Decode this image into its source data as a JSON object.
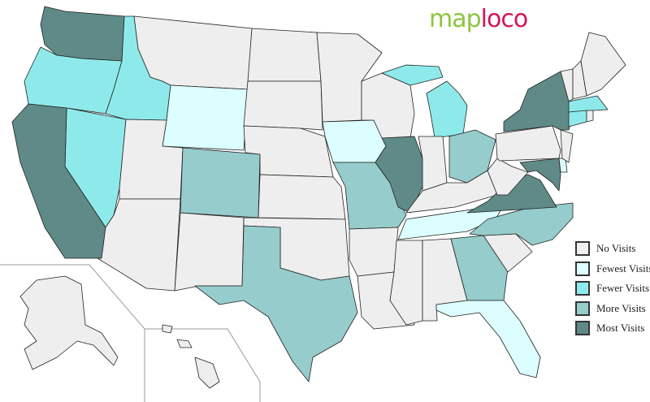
{
  "logo": {
    "part1": "map",
    "part2": "loco"
  },
  "legend": [
    {
      "key": "none",
      "label": "No Visits",
      "color": "#eeeeee"
    },
    {
      "key": "fewest",
      "label": "Fewest Visits",
      "color": "#dcfefe"
    },
    {
      "key": "fewer",
      "label": "Fewer Visits",
      "color": "#8eeaea"
    },
    {
      "key": "more",
      "label": "More Visits",
      "color": "#96cccc"
    },
    {
      "key": "most",
      "label": "Most Visits",
      "color": "#5f8a87"
    }
  ],
  "states": {
    "WA": "most",
    "OR": "fewer",
    "ID": "fewer",
    "MT": "none",
    "WY": "fewest",
    "NV": "fewer",
    "CA": "most",
    "UT": "none",
    "AZ": "none",
    "CO": "more",
    "NM": "none",
    "ND": "none",
    "SD": "none",
    "NE": "none",
    "KS": "none",
    "OK": "none",
    "TX": "more",
    "MN": "none",
    "IA": "fewest",
    "MO": "more",
    "AR": "none",
    "LA": "none",
    "WI": "none",
    "IL": "most",
    "MI": "fewer",
    "IN": "none",
    "OH": "more",
    "KY": "none",
    "TN": "fewest",
    "MS": "none",
    "AL": "none",
    "GA": "more",
    "FL": "fewest",
    "SC": "none",
    "NC": "more",
    "VA": "most",
    "WV": "none",
    "PA": "none",
    "NY": "most",
    "VT": "none",
    "NH": "none",
    "ME": "none",
    "MA": "fewer",
    "CT": "fewer",
    "RI": "none",
    "NJ": "none",
    "DE": "fewest",
    "MD": "most",
    "AK": "none",
    "HI": "none"
  }
}
